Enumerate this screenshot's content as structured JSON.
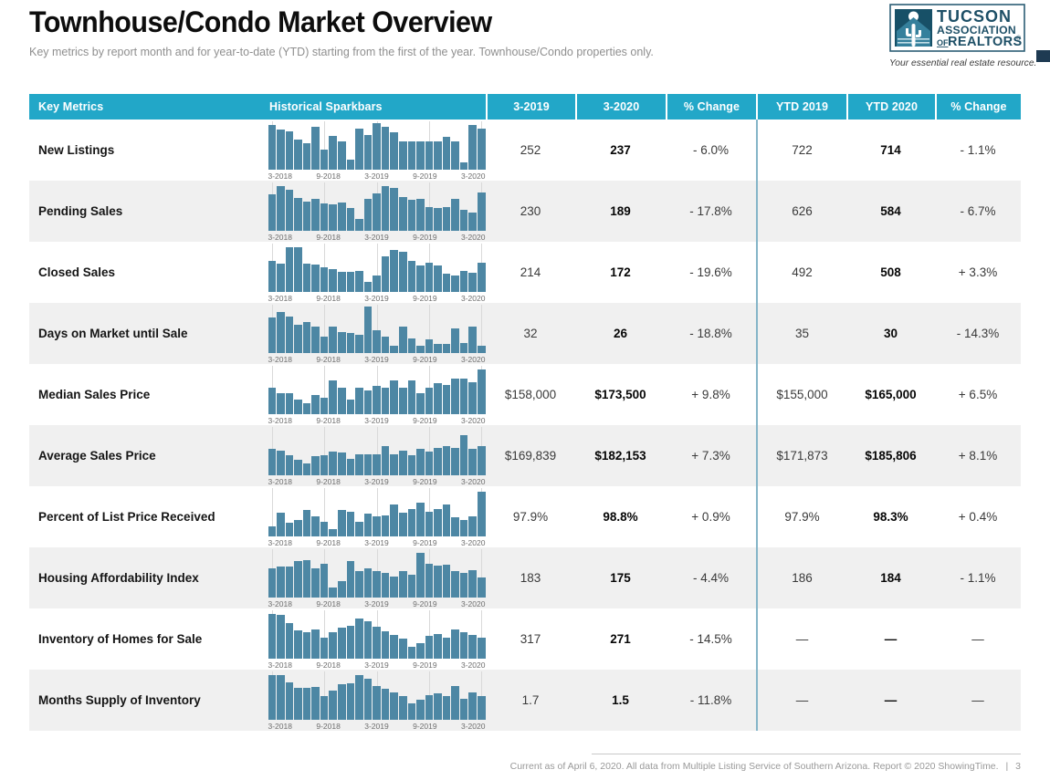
{
  "page": {
    "title": "Townhouse/Condo Market Overview",
    "subtitle": "Key metrics by report month and for year-to-date (YTD) starting from the first of the year. Townhouse/Condo properties only.",
    "footer": {
      "text": "Current as of April 6, 2020. All data from Multiple Listing Service of Southern Arizona. Report © 2020 ShowingTime.",
      "separator": "|",
      "page_number": "3"
    }
  },
  "logo": {
    "line1": "TUCSON",
    "line2": "ASSOCIATION",
    "line3_of": "OF",
    "line3_realtors": "REALTORS",
    "registered": "®",
    "tagline": "Your essential real estate resource."
  },
  "colors": {
    "header_teal": "#22a7c8",
    "sparkbar_blue": "#4d87a4",
    "row_alt_gray": "#f0f0f0",
    "divider_teal": "#85b5c8",
    "logo_navy": "#1d4f66"
  },
  "table": {
    "columns": [
      "Key Metrics",
      "Historical Sparkbars",
      "3-2019",
      "3-2020",
      "% Change",
      "YTD 2019",
      "YTD 2020",
      "% Change"
    ],
    "sparkbar_axis_labels": [
      "3-2018",
      "9-2018",
      "3-2019",
      "9-2019",
      "3-2020"
    ],
    "rows": [
      {
        "metric": "New Listings",
        "m2019": "252",
        "m2020": "237",
        "change_m": "- 6.0%",
        "ytd2019": "722",
        "ytd2020": "714",
        "change_ytd": "- 1.1%"
      },
      {
        "metric": "Pending Sales",
        "m2019": "230",
        "m2020": "189",
        "change_m": "- 17.8%",
        "ytd2019": "626",
        "ytd2020": "584",
        "change_ytd": "- 6.7%"
      },
      {
        "metric": "Closed Sales",
        "m2019": "214",
        "m2020": "172",
        "change_m": "- 19.6%",
        "ytd2019": "492",
        "ytd2020": "508",
        "change_ytd": "+ 3.3%"
      },
      {
        "metric": "Days on Market until Sale",
        "m2019": "32",
        "m2020": "26",
        "change_m": "- 18.8%",
        "ytd2019": "35",
        "ytd2020": "30",
        "change_ytd": "- 14.3%"
      },
      {
        "metric": "Median Sales Price",
        "m2019": "$158,000",
        "m2020": "$173,500",
        "change_m": "+ 9.8%",
        "ytd2019": "$155,000",
        "ytd2020": "$165,000",
        "change_ytd": "+ 6.5%"
      },
      {
        "metric": "Average Sales Price",
        "m2019": "$169,839",
        "m2020": "$182,153",
        "change_m": "+ 7.3%",
        "ytd2019": "$171,873",
        "ytd2020": "$185,806",
        "change_ytd": "+ 8.1%"
      },
      {
        "metric": "Percent of List Price Received",
        "m2019": "97.9%",
        "m2020": "98.8%",
        "change_m": "+ 0.9%",
        "ytd2019": "97.9%",
        "ytd2020": "98.3%",
        "change_ytd": "+ 0.4%"
      },
      {
        "metric": "Housing Affordability Index",
        "m2019": "183",
        "m2020": "175",
        "change_m": "- 4.4%",
        "ytd2019": "186",
        "ytd2020": "184",
        "change_ytd": "- 1.1%"
      },
      {
        "metric": "Inventory of Homes for Sale",
        "m2019": "317",
        "m2020": "271",
        "change_m": "- 14.5%",
        "ytd2019": "—",
        "ytd2020": "—",
        "change_ytd": "—"
      },
      {
        "metric": "Months Supply of Inventory",
        "m2019": "1.7",
        "m2020": "1.5",
        "change_m": "- 11.8%",
        "ytd2019": "—",
        "ytd2020": "—",
        "change_ytd": "—"
      }
    ]
  },
  "chart_data": [
    {
      "type": "bar",
      "name": "New Listings sparkbar",
      "x_range": [
        "3-2018",
        "3-2020"
      ],
      "x_tick_labels": [
        "3-2018",
        "9-2018",
        "3-2019",
        "9-2019",
        "3-2020"
      ],
      "unit": "relative height %",
      "values": [
        95,
        85,
        82,
        64,
        56,
        91,
        42,
        72,
        60,
        20,
        88,
        74,
        100,
        92,
        80,
        60,
        60,
        59,
        60,
        60,
        70,
        60,
        15,
        95,
        88
      ]
    },
    {
      "type": "bar",
      "name": "Pending Sales sparkbar",
      "x_range": [
        "3-2018",
        "3-2020"
      ],
      "x_tick_labels": [
        "3-2018",
        "9-2018",
        "3-2019",
        "9-2019",
        "3-2020"
      ],
      "unit": "relative height %",
      "values": [
        78,
        95,
        88,
        70,
        62,
        68,
        58,
        55,
        60,
        48,
        25,
        68,
        80,
        95,
        92,
        72,
        65,
        68,
        50,
        48,
        50,
        68,
        45,
        38,
        82
      ]
    },
    {
      "type": "bar",
      "name": "Closed Sales sparkbar",
      "x_range": [
        "3-2018",
        "3-2020"
      ],
      "x_tick_labels": [
        "3-2018",
        "9-2018",
        "3-2019",
        "9-2019",
        "3-2020"
      ],
      "unit": "relative height %",
      "values": [
        65,
        60,
        95,
        95,
        60,
        58,
        52,
        48,
        42,
        42,
        45,
        20,
        35,
        75,
        90,
        85,
        65,
        55,
        62,
        55,
        38,
        35,
        45,
        40,
        62
      ]
    },
    {
      "type": "bar",
      "name": "Days on Market until Sale sparkbar",
      "x_range": [
        "3-2018",
        "3-2020"
      ],
      "x_tick_labels": [
        "3-2018",
        "9-2018",
        "3-2019",
        "9-2019",
        "3-2020"
      ],
      "unit": "relative height %",
      "values": [
        75,
        88,
        78,
        60,
        65,
        55,
        35,
        55,
        45,
        42,
        38,
        100,
        48,
        35,
        15,
        55,
        30,
        15,
        28,
        18,
        18,
        52,
        20,
        55,
        15
      ]
    },
    {
      "type": "bar",
      "name": "Median Sales Price sparkbar",
      "x_range": [
        "3-2018",
        "3-2020"
      ],
      "x_tick_labels": [
        "3-2018",
        "9-2018",
        "3-2019",
        "9-2019",
        "3-2020"
      ],
      "unit": "relative height %",
      "values": [
        55,
        45,
        45,
        30,
        22,
        40,
        35,
        72,
        55,
        30,
        55,
        50,
        60,
        55,
        72,
        55,
        72,
        45,
        55,
        65,
        62,
        75,
        75,
        68,
        95
      ]
    },
    {
      "type": "bar",
      "name": "Average Sales Price sparkbar",
      "x_range": [
        "3-2018",
        "3-2020"
      ],
      "x_tick_labels": [
        "3-2018",
        "9-2018",
        "3-2019",
        "9-2019",
        "3-2020"
      ],
      "unit": "relative height %",
      "values": [
        55,
        52,
        42,
        32,
        25,
        40,
        42,
        50,
        48,
        35,
        45,
        45,
        45,
        62,
        45,
        52,
        42,
        55,
        50,
        58,
        62,
        58,
        85,
        55,
        62
      ]
    },
    {
      "type": "bar",
      "name": "Percent of List Price Received sparkbar",
      "x_range": [
        "3-2018",
        "3-2020"
      ],
      "x_tick_labels": [
        "3-2018",
        "9-2018",
        "3-2019",
        "9-2019",
        "3-2020"
      ],
      "unit": "relative height %",
      "values": [
        20,
        50,
        28,
        35,
        55,
        42,
        30,
        15,
        55,
        52,
        30,
        48,
        42,
        45,
        68,
        50,
        58,
        72,
        52,
        58,
        68,
        40,
        35,
        42,
        95
      ]
    },
    {
      "type": "bar",
      "name": "Housing Affordability Index sparkbar",
      "x_range": [
        "3-2018",
        "3-2020"
      ],
      "x_tick_labels": [
        "3-2018",
        "9-2018",
        "3-2019",
        "9-2019",
        "3-2020"
      ],
      "unit": "relative height %",
      "values": [
        62,
        65,
        65,
        78,
        80,
        62,
        72,
        20,
        35,
        78,
        55,
        62,
        55,
        52,
        45,
        55,
        48,
        95,
        72,
        68,
        70,
        55,
        52,
        58,
        42
      ]
    },
    {
      "type": "bar",
      "name": "Inventory of Homes for Sale sparkbar",
      "x_range": [
        "3-2018",
        "3-2020"
      ],
      "x_tick_labels": [
        "3-2018",
        "9-2018",
        "3-2019",
        "9-2019",
        "3-2020"
      ],
      "unit": "relative height %",
      "values": [
        95,
        93,
        75,
        60,
        55,
        62,
        45,
        55,
        65,
        70,
        85,
        80,
        68,
        58,
        50,
        42,
        25,
        32,
        48,
        52,
        45,
        62,
        55,
        50,
        45
      ]
    },
    {
      "type": "bar",
      "name": "Months Supply of Inventory sparkbar",
      "x_range": [
        "3-2018",
        "3-2020"
      ],
      "x_tick_labels": [
        "3-2018",
        "9-2018",
        "3-2019",
        "9-2019",
        "3-2020"
      ],
      "unit": "relative height %",
      "values": [
        95,
        95,
        80,
        68,
        68,
        70,
        50,
        62,
        75,
        78,
        95,
        88,
        72,
        65,
        58,
        50,
        35,
        42,
        52,
        55,
        50,
        72,
        45,
        58,
        50
      ]
    }
  ]
}
